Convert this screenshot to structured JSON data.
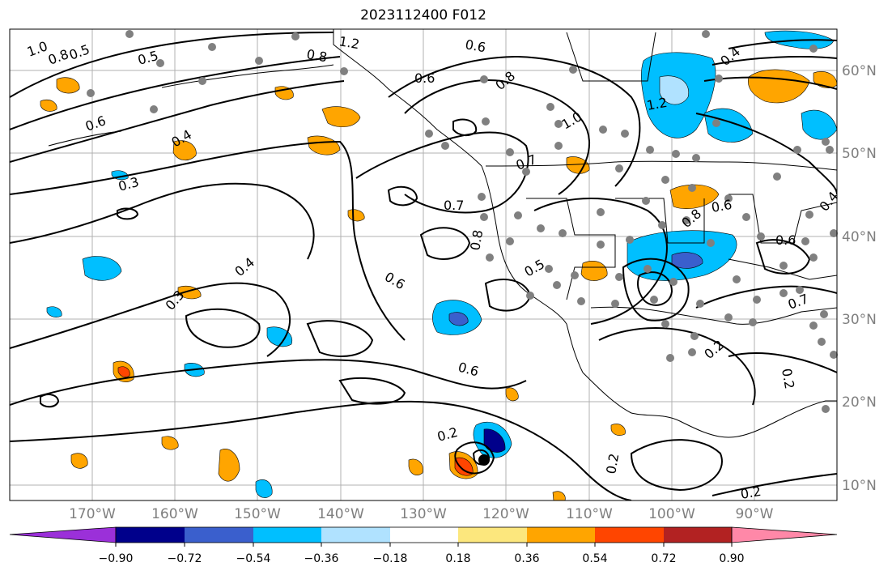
{
  "title": "2023112400 F012",
  "latitude_labels": [
    "60°N",
    "50°N",
    "40°N",
    "30°N",
    "20°N",
    "10°N"
  ],
  "longitude_labels": [
    "170°W",
    "160°W",
    "150°W",
    "140°W",
    "130°W",
    "120°W",
    "110°W",
    "100°W",
    "90°W"
  ],
  "colorbar": {
    "tick_labels": [
      "−0.90",
      "−0.72",
      "−0.54",
      "−0.36",
      "−0.18",
      "0.18",
      "0.36",
      "0.54",
      "0.72",
      "0.90"
    ],
    "colors": [
      "#9b30d9",
      "#00008b",
      "#3a5fcd",
      "#00bfff",
      "#b0e2ff",
      "#ffffff",
      "#fce77d",
      "#ffa500",
      "#ff4500",
      "#b22222",
      "#ff88a8"
    ]
  },
  "contour_labels": [
    "1.0",
    "0.8",
    "0.5",
    "0.5",
    "0.6",
    "0.4",
    "0.3",
    "1.2",
    "0.8",
    "0.6",
    "0.6",
    "0.8",
    "1.0",
    "1.2",
    "0.4",
    "0.7",
    "0.7",
    "0.8",
    "0.6",
    "0.5",
    "0.4",
    "0.3",
    "0.6",
    "0.6",
    "0.2",
    "0.2",
    "0.2",
    "0.2",
    "0.2",
    "0.7",
    "0.6",
    "0.8",
    "0.4"
  ],
  "colors": {
    "coastline": "#000000",
    "grid": "#b0b0b0",
    "station_dot": "#808080",
    "label": "#7f7f7f"
  }
}
